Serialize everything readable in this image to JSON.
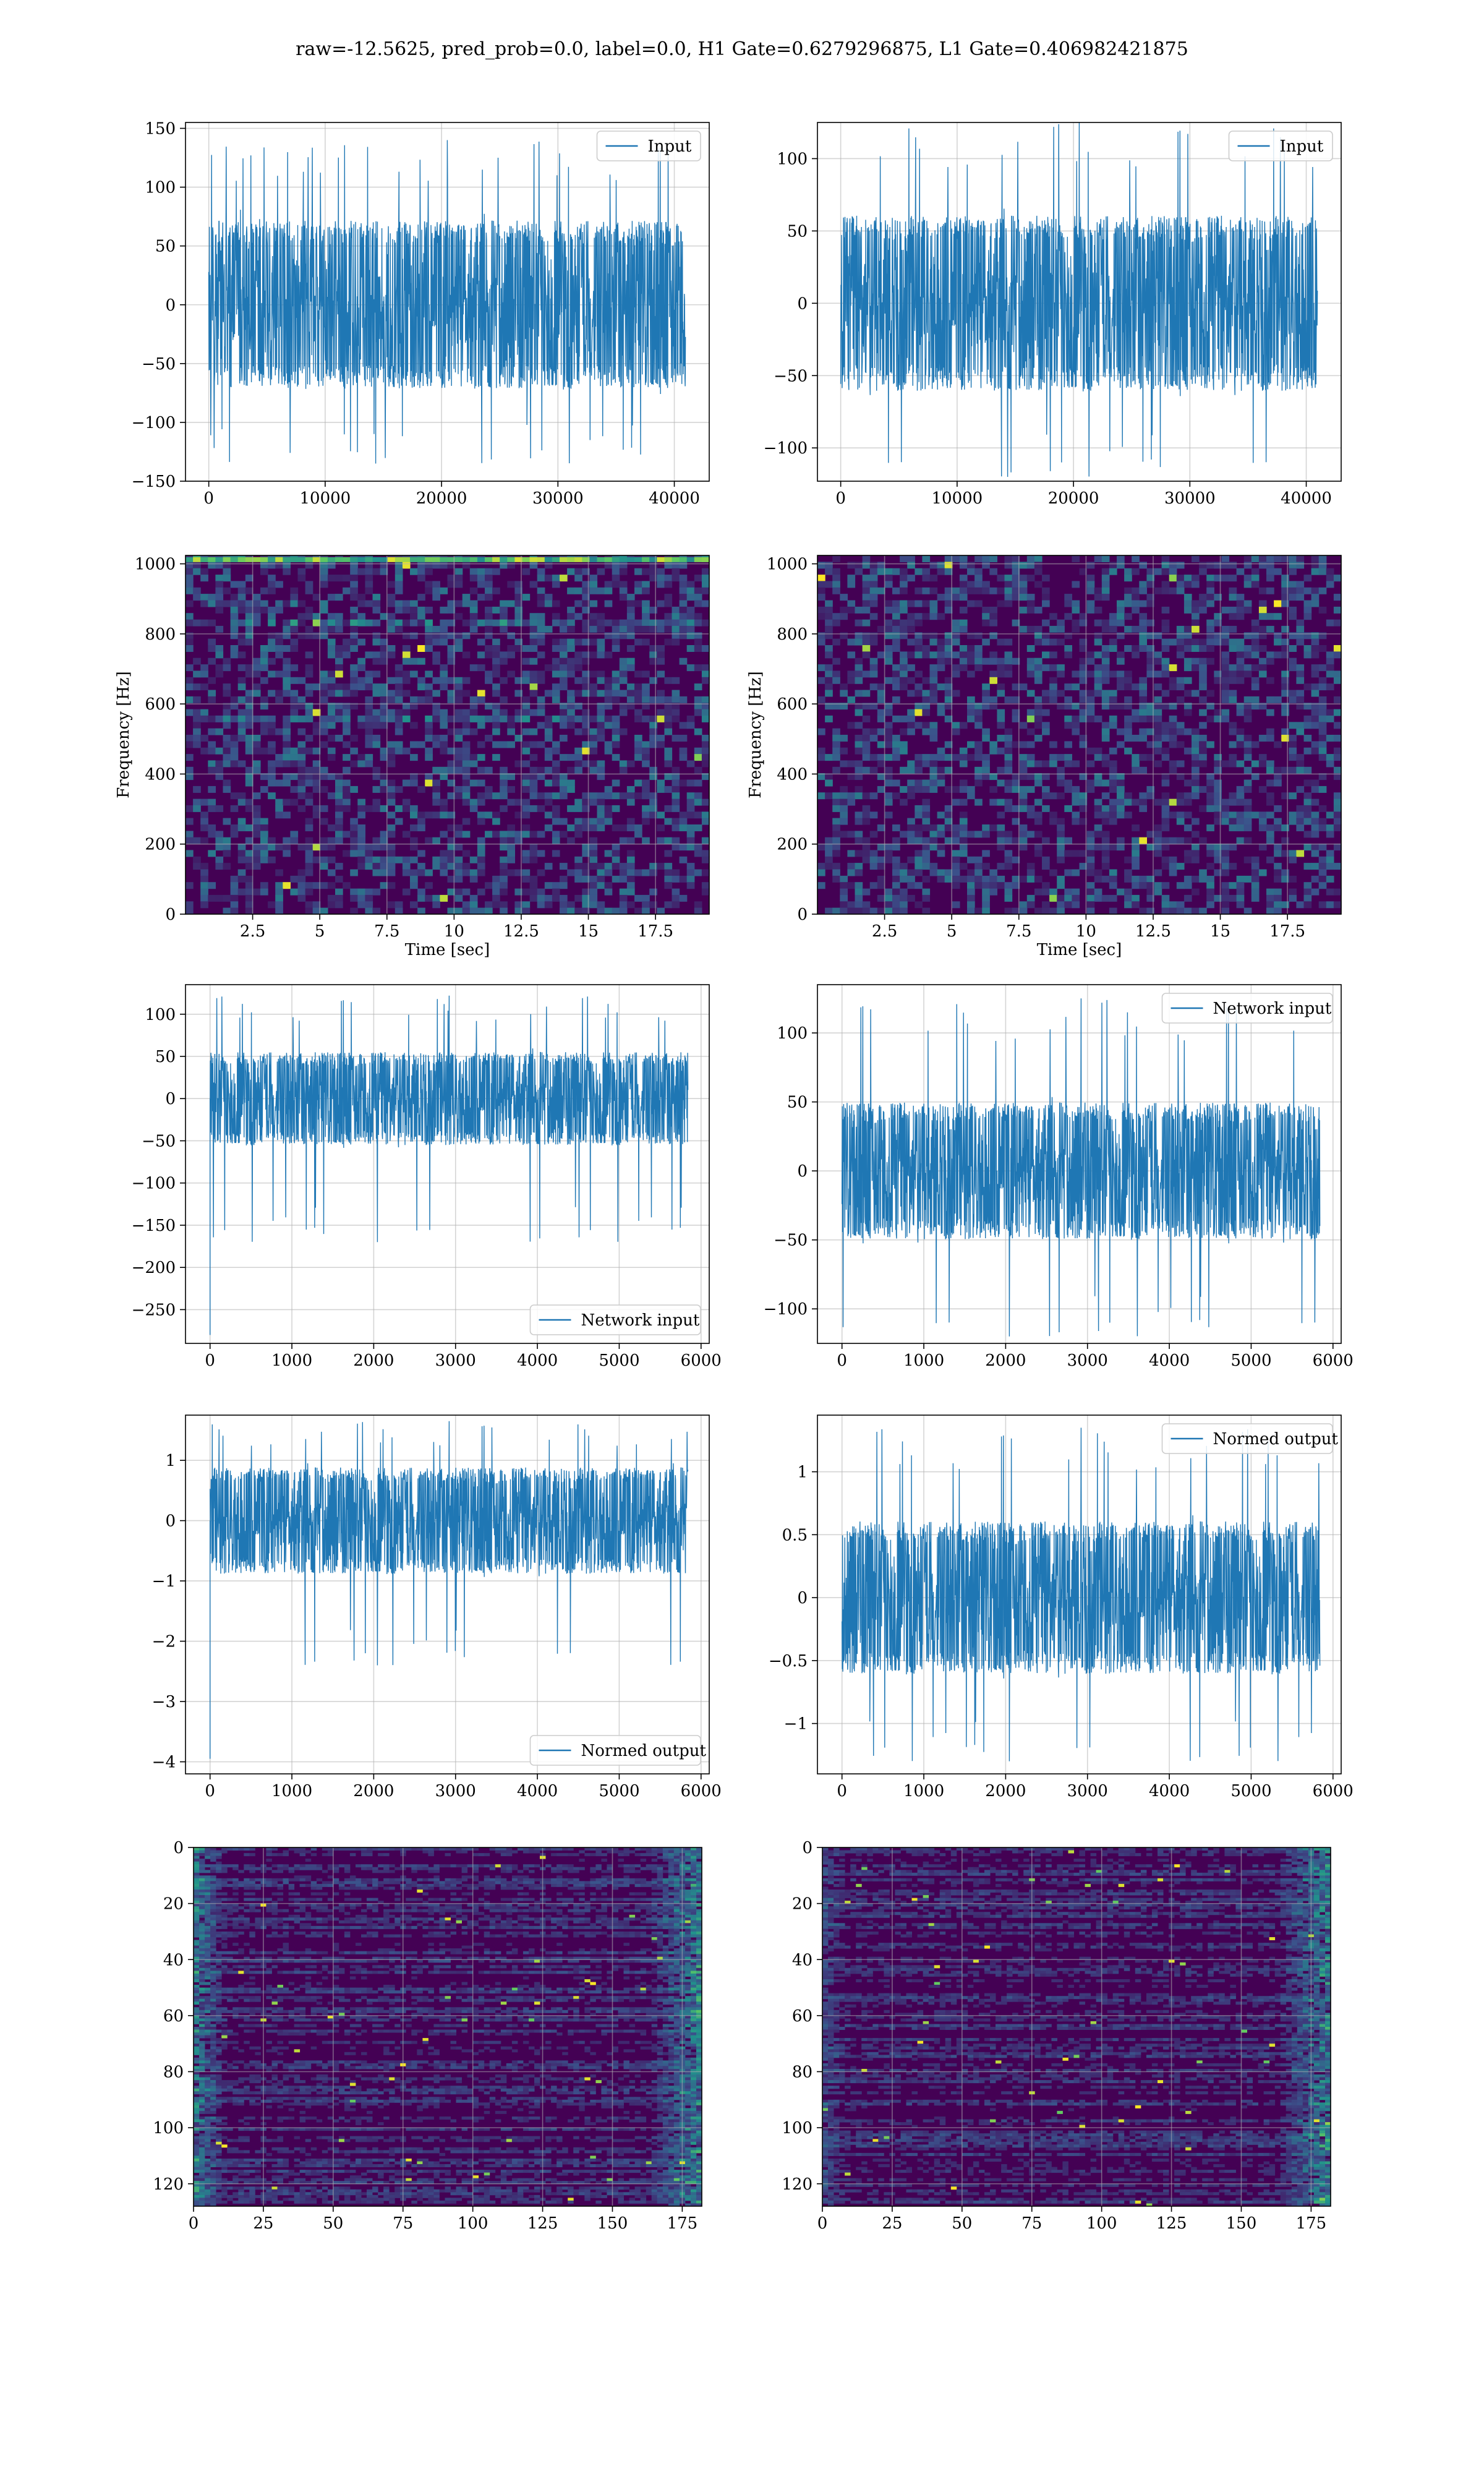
{
  "suptitle": "raw=-12.5625, pred_prob=0.0, label=0.0, H1 Gate=0.6279296875, L1 Gate=0.406982421875",
  "colors": {
    "line": "#1f77b4",
    "grid": "#b0b0b0",
    "viridis_low": "#440154",
    "viridis_mid": "#21918c",
    "viridis_high": "#fde725"
  },
  "chart_data": [
    {
      "id": "h1_input",
      "type": "line",
      "series": [
        {
          "name": "Input"
        }
      ],
      "legend": "upper right",
      "xlim": [
        -2000,
        43000
      ],
      "ylim": [
        -150,
        155
      ],
      "xticks": [
        0,
        10000,
        20000,
        30000,
        40000
      ],
      "yticks": [
        -150,
        -100,
        -50,
        0,
        50,
        100,
        150
      ],
      "grid": true,
      "signal": {
        "x_range": [
          0,
          40960
        ],
        "envelope": [
          -70,
          60
        ],
        "peak_max": 140,
        "peak_min": -135
      }
    },
    {
      "id": "l1_input",
      "type": "line",
      "series": [
        {
          "name": "Input"
        }
      ],
      "legend": "upper right",
      "xlim": [
        -2000,
        43000
      ],
      "ylim": [
        -123,
        125
      ],
      "xticks": [
        0,
        10000,
        20000,
        30000,
        40000
      ],
      "yticks": [
        -100,
        -50,
        0,
        50,
        100
      ],
      "grid": true,
      "signal": {
        "x_range": [
          0,
          40960
        ],
        "envelope": [
          -55,
          55
        ],
        "peak_max": 125,
        "peak_min": -120
      }
    },
    {
      "id": "h1_spectrogram",
      "type": "heatmap",
      "xlabel": "Time [sec]",
      "ylabel": "Frequency [Hz]",
      "xlim": [
        0,
        19.5
      ],
      "ylim": [
        0,
        1024
      ],
      "xticks": [
        2.5,
        5.0,
        7.5,
        10.0,
        12.5,
        15.0,
        17.5
      ],
      "yticks": [
        0,
        200,
        400,
        600,
        800,
        1000
      ],
      "grid": true,
      "bright_rows_hz": [
        1012,
        830,
        560
      ]
    },
    {
      "id": "l1_spectrogram",
      "type": "heatmap",
      "xlabel": "Time [sec]",
      "ylabel": "Frequency [Hz]",
      "xlim": [
        0,
        19.5
      ],
      "ylim": [
        0,
        1024
      ],
      "xticks": [
        2.5,
        5.0,
        7.5,
        10.0,
        12.5,
        15.0,
        17.5
      ],
      "yticks": [
        0,
        200,
        400,
        600,
        800,
        1000
      ],
      "grid": true,
      "bright_rows_hz": []
    },
    {
      "id": "h1_network_input",
      "type": "line",
      "series": [
        {
          "name": "Network input"
        }
      ],
      "legend": "lower right",
      "xlim": [
        -300,
        6100
      ],
      "ylim": [
        -290,
        135
      ],
      "xticks": [
        0,
        1000,
        2000,
        3000,
        4000,
        5000,
        6000
      ],
      "yticks": [
        -250,
        -200,
        -150,
        -100,
        -50,
        0,
        50,
        100
      ],
      "grid": true,
      "signal": {
        "x_range": [
          0,
          5840
        ],
        "envelope": [
          -50,
          50
        ],
        "peak_max": 122,
        "peak_min": -170,
        "spike": {
          "x": 0,
          "y": -280
        }
      }
    },
    {
      "id": "l1_network_input",
      "type": "line",
      "series": [
        {
          "name": "Network input"
        }
      ],
      "legend": "upper right",
      "xlim": [
        -300,
        6100
      ],
      "ylim": [
        -125,
        135
      ],
      "xticks": [
        0,
        1000,
        2000,
        3000,
        4000,
        5000,
        6000
      ],
      "yticks": [
        -100,
        -50,
        0,
        50,
        100
      ],
      "grid": true,
      "signal": {
        "x_range": [
          0,
          5840
        ],
        "envelope": [
          -45,
          45
        ],
        "peak_max": 125,
        "peak_min": -120
      }
    },
    {
      "id": "h1_normed_output",
      "type": "line",
      "series": [
        {
          "name": "Normed output"
        }
      ],
      "legend": "lower right",
      "xlim": [
        -300,
        6100
      ],
      "ylim": [
        -4.2,
        1.75
      ],
      "xticks": [
        0,
        1000,
        2000,
        3000,
        4000,
        5000,
        6000
      ],
      "yticks": [
        -4,
        -3,
        -2,
        -1,
        0,
        1
      ],
      "grid": true,
      "signal": {
        "x_range": [
          0,
          5840
        ],
        "envelope": [
          -0.8,
          0.8
        ],
        "peak_max": 1.65,
        "peak_min": -2.4,
        "spike": {
          "x": 0,
          "y": -3.95
        }
      }
    },
    {
      "id": "l1_normed_output",
      "type": "line",
      "series": [
        {
          "name": "Normed output"
        }
      ],
      "legend": "upper right",
      "xlim": [
        -300,
        6100
      ],
      "ylim": [
        -1.4,
        1.45
      ],
      "xticks": [
        0,
        1000,
        2000,
        3000,
        4000,
        5000,
        6000
      ],
      "yticks": [
        -1.0,
        -0.5,
        0.0,
        0.5,
        1.0
      ],
      "grid": true,
      "signal": {
        "x_range": [
          0,
          5840
        ],
        "envelope": [
          -0.55,
          0.55
        ],
        "peak_max": 1.35,
        "peak_min": -1.3
      }
    },
    {
      "id": "h1_feature_map",
      "type": "heatmap",
      "xlim": [
        0,
        182
      ],
      "ylim": [
        128,
        0
      ],
      "xticks": [
        0,
        25,
        50,
        75,
        100,
        125,
        150,
        175
      ],
      "yticks": [
        0,
        20,
        40,
        60,
        80,
        100,
        120
      ],
      "grid": true,
      "edge_activity": "both"
    },
    {
      "id": "l1_feature_map",
      "type": "heatmap",
      "xlim": [
        0,
        182
      ],
      "ylim": [
        128,
        0
      ],
      "xticks": [
        0,
        25,
        50,
        75,
        100,
        125,
        150,
        175
      ],
      "yticks": [
        0,
        20,
        40,
        60,
        80,
        100,
        120
      ],
      "grid": true,
      "edge_activity": "right"
    }
  ]
}
